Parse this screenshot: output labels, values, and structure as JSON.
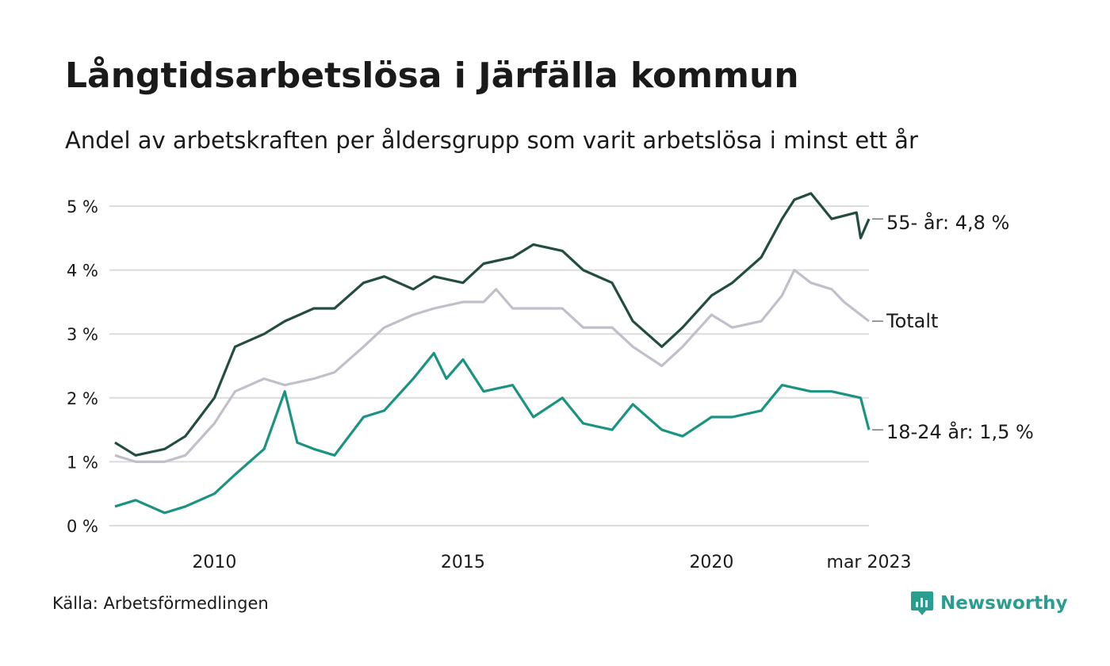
{
  "title": "Långtidsarbetslösa i Järfälla kommun",
  "subtitle": "Andel av arbetskraften per åldersgrupp som varit arbetslösa i minst ett år",
  "source": "Källa: Arbetsförmedlingen",
  "brand": {
    "name": "Newsworthy",
    "icon": "newsworthy-logo-icon",
    "color": "#2a9d8f"
  },
  "chart_data": {
    "type": "line",
    "x_range": [
      "2008-01",
      "2023-03"
    ],
    "ylim": [
      0,
      5.2
    ],
    "y_ticks": [
      0,
      1,
      2,
      3,
      4,
      5
    ],
    "y_tick_labels": [
      "0 %",
      "1 %",
      "2 %",
      "3 %",
      "4 %",
      "5 %"
    ],
    "x_ticks": [
      {
        "date": "2010-01",
        "label": "2010"
      },
      {
        "date": "2015-01",
        "label": "2015"
      },
      {
        "date": "2020-01",
        "label": "2020"
      },
      {
        "date": "2023-03",
        "label": "mar 2023"
      }
    ],
    "grid": "horizontal",
    "series": [
      {
        "name": "Totalt",
        "label": "Totalt",
        "color": "#c2bfcb",
        "points": [
          [
            "2008-01",
            1.1
          ],
          [
            "2008-06",
            1.0
          ],
          [
            "2009-01",
            1.0
          ],
          [
            "2009-06",
            1.1
          ],
          [
            "2010-01",
            1.6
          ],
          [
            "2010-06",
            2.1
          ],
          [
            "2011-01",
            2.3
          ],
          [
            "2011-06",
            2.2
          ],
          [
            "2012-01",
            2.3
          ],
          [
            "2012-06",
            2.4
          ],
          [
            "2013-01",
            2.8
          ],
          [
            "2013-06",
            3.1
          ],
          [
            "2014-01",
            3.3
          ],
          [
            "2014-06",
            3.4
          ],
          [
            "2015-01",
            3.5
          ],
          [
            "2015-06",
            3.5
          ],
          [
            "2015-09",
            3.7
          ],
          [
            "2016-01",
            3.4
          ],
          [
            "2016-06",
            3.4
          ],
          [
            "2017-01",
            3.4
          ],
          [
            "2017-06",
            3.1
          ],
          [
            "2018-01",
            3.1
          ],
          [
            "2018-06",
            2.8
          ],
          [
            "2019-01",
            2.5
          ],
          [
            "2019-06",
            2.8
          ],
          [
            "2020-01",
            3.3
          ],
          [
            "2020-06",
            3.1
          ],
          [
            "2021-01",
            3.2
          ],
          [
            "2021-06",
            3.6
          ],
          [
            "2021-09",
            4.0
          ],
          [
            "2022-01",
            3.8
          ],
          [
            "2022-06",
            3.7
          ],
          [
            "2022-09",
            3.5
          ],
          [
            "2023-01",
            3.3
          ],
          [
            "2023-03",
            3.2
          ]
        ]
      },
      {
        "name": "55- år",
        "label": "55- år: 4,8 %",
        "color": "#234d40",
        "points": [
          [
            "2008-01",
            1.3
          ],
          [
            "2008-06",
            1.1
          ],
          [
            "2009-01",
            1.2
          ],
          [
            "2009-06",
            1.4
          ],
          [
            "2010-01",
            2.0
          ],
          [
            "2010-06",
            2.8
          ],
          [
            "2011-01",
            3.0
          ],
          [
            "2011-06",
            3.2
          ],
          [
            "2012-01",
            3.4
          ],
          [
            "2012-06",
            3.4
          ],
          [
            "2013-01",
            3.8
          ],
          [
            "2013-06",
            3.9
          ],
          [
            "2014-01",
            3.7
          ],
          [
            "2014-06",
            3.9
          ],
          [
            "2015-01",
            3.8
          ],
          [
            "2015-06",
            4.1
          ],
          [
            "2016-01",
            4.2
          ],
          [
            "2016-06",
            4.4
          ],
          [
            "2017-01",
            4.3
          ],
          [
            "2017-06",
            4.0
          ],
          [
            "2018-01",
            3.8
          ],
          [
            "2018-06",
            3.2
          ],
          [
            "2019-01",
            2.8
          ],
          [
            "2019-06",
            3.1
          ],
          [
            "2020-01",
            3.6
          ],
          [
            "2020-06",
            3.8
          ],
          [
            "2021-01",
            4.2
          ],
          [
            "2021-06",
            4.8
          ],
          [
            "2021-09",
            5.1
          ],
          [
            "2022-01",
            5.2
          ],
          [
            "2022-06",
            4.8
          ],
          [
            "2022-12",
            4.9
          ],
          [
            "2023-01",
            4.5
          ],
          [
            "2023-03",
            4.8
          ]
        ]
      },
      {
        "name": "18-24 år",
        "label": "18-24 år: 1,5 %",
        "color": "#1a9481",
        "points": [
          [
            "2008-01",
            0.3
          ],
          [
            "2008-06",
            0.4
          ],
          [
            "2009-01",
            0.2
          ],
          [
            "2009-06",
            0.3
          ],
          [
            "2010-01",
            0.5
          ],
          [
            "2010-06",
            0.8
          ],
          [
            "2011-01",
            1.2
          ],
          [
            "2011-06",
            2.1
          ],
          [
            "2011-09",
            1.3
          ],
          [
            "2012-01",
            1.2
          ],
          [
            "2012-06",
            1.1
          ],
          [
            "2013-01",
            1.7
          ],
          [
            "2013-06",
            1.8
          ],
          [
            "2014-01",
            2.3
          ],
          [
            "2014-06",
            2.7
          ],
          [
            "2014-09",
            2.3
          ],
          [
            "2015-01",
            2.6
          ],
          [
            "2015-06",
            2.1
          ],
          [
            "2016-01",
            2.2
          ],
          [
            "2016-06",
            1.7
          ],
          [
            "2017-01",
            2.0
          ],
          [
            "2017-06",
            1.6
          ],
          [
            "2018-01",
            1.5
          ],
          [
            "2018-06",
            1.9
          ],
          [
            "2019-01",
            1.5
          ],
          [
            "2019-06",
            1.4
          ],
          [
            "2020-01",
            1.7
          ],
          [
            "2020-06",
            1.7
          ],
          [
            "2021-01",
            1.8
          ],
          [
            "2021-06",
            2.2
          ],
          [
            "2022-01",
            2.1
          ],
          [
            "2022-06",
            2.1
          ],
          [
            "2023-01",
            2.0
          ],
          [
            "2023-03",
            1.5
          ]
        ]
      }
    ]
  }
}
